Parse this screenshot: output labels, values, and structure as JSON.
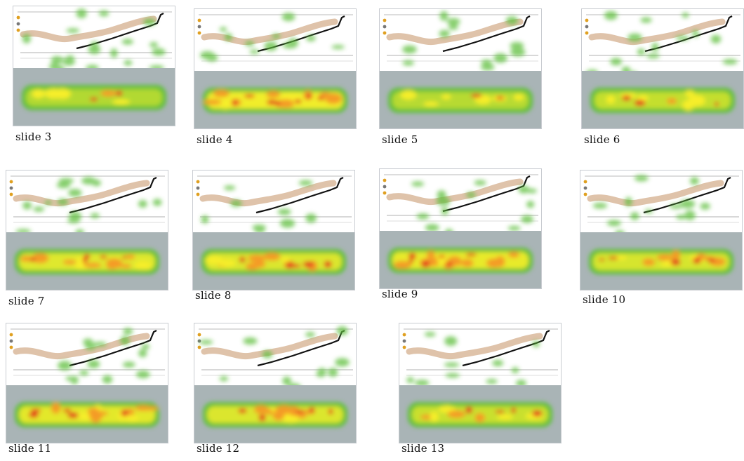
{
  "figure": {
    "slides": [
      {
        "label": "slide 3",
        "top_density": 0.9,
        "bottom_intensity": 0.25
      },
      {
        "label": "slide 4",
        "top_density": 0.45,
        "bottom_intensity": 0.95
      },
      {
        "label": "slide 5",
        "top_density": 0.35,
        "bottom_intensity": 0.3
      },
      {
        "label": "slide 6",
        "top_density": 0.55,
        "bottom_intensity": 0.45
      },
      {
        "label": "slide 7",
        "top_density": 0.6,
        "bottom_intensity": 0.75
      },
      {
        "label": "slide 8",
        "top_density": 0.2,
        "bottom_intensity": 0.7
      },
      {
        "label": "slide 9",
        "top_density": 0.5,
        "bottom_intensity": 0.85
      },
      {
        "label": "slide 10",
        "top_density": 0.45,
        "bottom_intensity": 0.65
      },
      {
        "label": "slide 11",
        "top_density": 0.55,
        "bottom_intensity": 0.8
      },
      {
        "label": "slide 12",
        "top_density": 0.35,
        "bottom_intensity": 0.7
      },
      {
        "label": "slide 13",
        "top_density": 0.3,
        "bottom_intensity": 0.5
      }
    ],
    "colors": {
      "panel_gray": "#a9b4b6",
      "heat_green": "#5fbf3c",
      "heat_yellow": "#f6ee2a",
      "heat_orange": "#f49b25",
      "heat_red": "#e3361f",
      "route_tan": "#d9b99b",
      "route_black": "#111111"
    }
  }
}
